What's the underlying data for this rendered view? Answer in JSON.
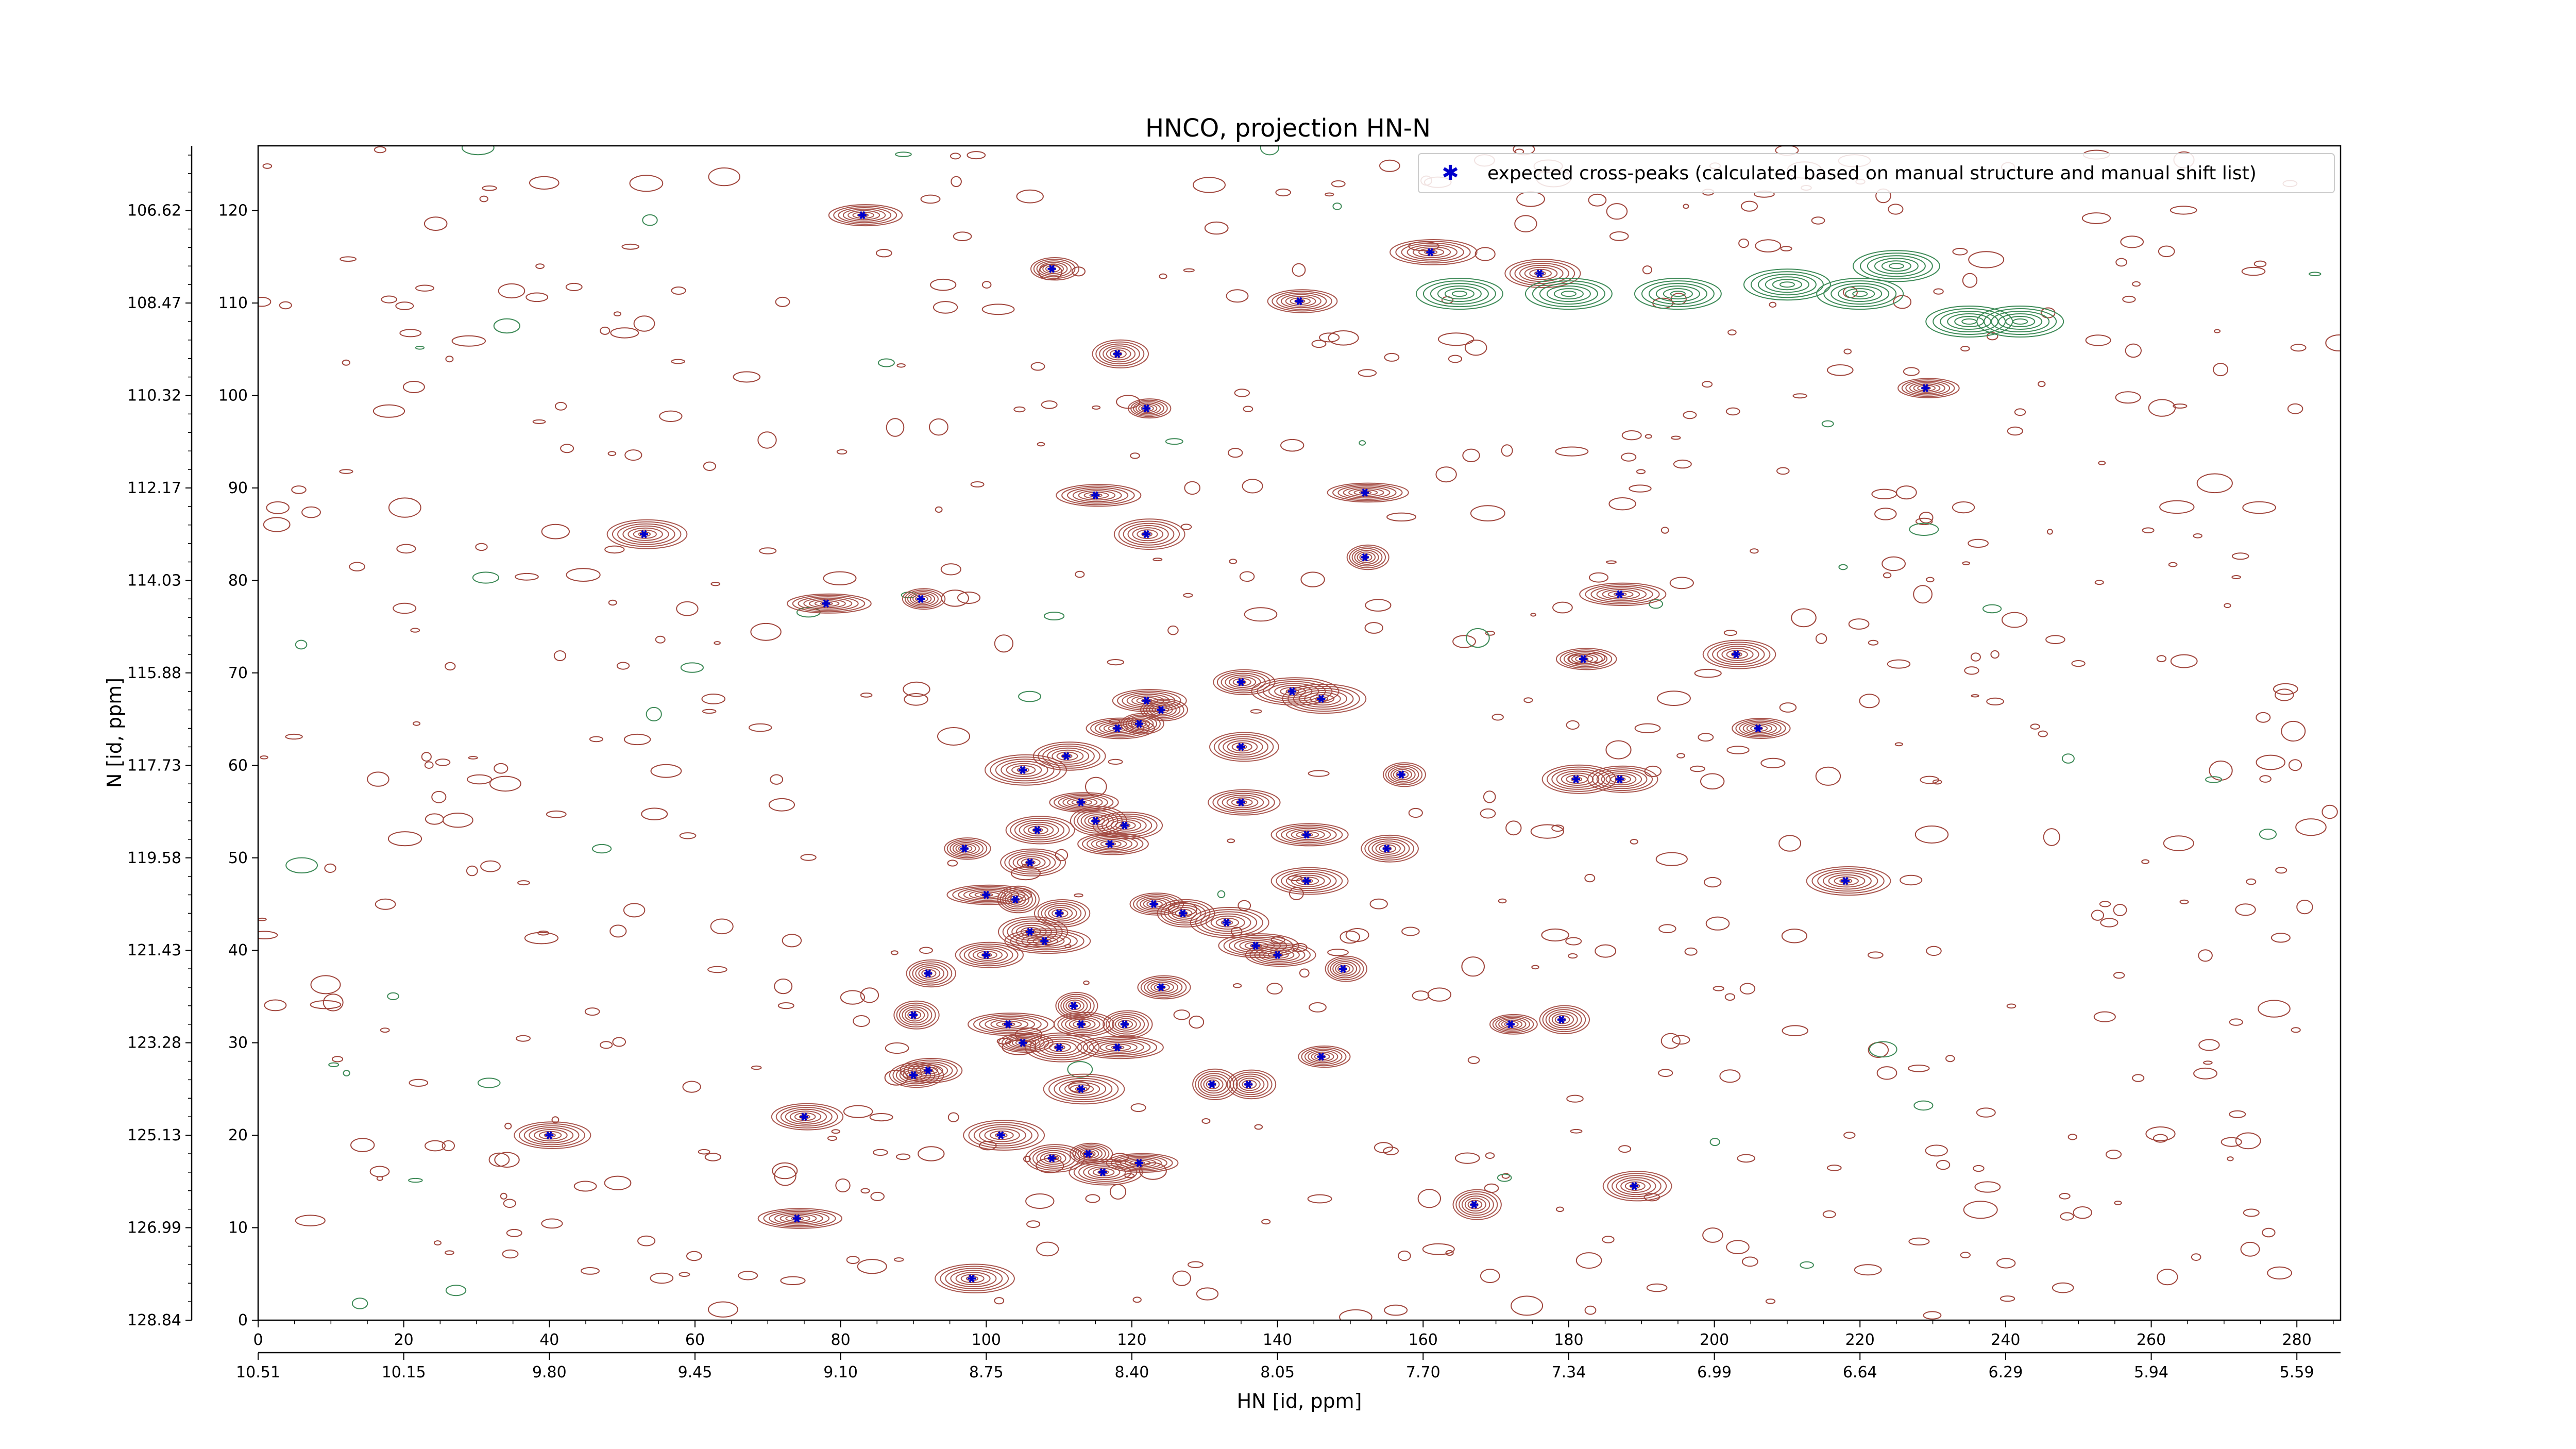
{
  "chart_data": {
    "type": "scatter",
    "title": "HNCO, projection HN-N",
    "xlabel": "HN [id, ppm]",
    "ylabel": "N [id, ppm]",
    "x_index_range": [
      0,
      286
    ],
    "y_index_range": [
      0,
      127
    ],
    "x_index_ticks": [
      0,
      20,
      40,
      60,
      80,
      100,
      120,
      140,
      160,
      180,
      200,
      220,
      240,
      260,
      280
    ],
    "x_ppm_ticks": [
      "10.51",
      "10.15",
      "9.80",
      "9.45",
      "9.10",
      "8.75",
      "8.40",
      "8.05",
      "7.70",
      "7.34",
      "6.99",
      "6.64",
      "6.29",
      "5.94",
      "5.59"
    ],
    "y_index_ticks": [
      0,
      10,
      20,
      30,
      40,
      50,
      60,
      70,
      80,
      90,
      100,
      110,
      120
    ],
    "y_ppm_ticks": [
      "128.84",
      "126.99",
      "125.13",
      "123.28",
      "121.43",
      "119.58",
      "117.73",
      "115.88",
      "114.03",
      "112.17",
      "110.32",
      "108.47",
      "106.62"
    ],
    "grid": false,
    "legend": {
      "position": "top-right",
      "entries": [
        "expected cross-peaks (calculated based on manual structure and manual shift list)"
      ]
    },
    "colors": {
      "positive_contours": "#a0453c",
      "negative_contours": "#3d8a57",
      "markers": "#0000cc"
    },
    "series": [
      {
        "name": "expected cross-peaks (calculated based on manual structure and manual shift list)",
        "points": [
          [
            83,
            119.5
          ],
          [
            109,
            113.7
          ],
          [
            143,
            110.2
          ],
          [
            161,
            115.5
          ],
          [
            176,
            113.2
          ],
          [
            118,
            104.5
          ],
          [
            122,
            98.6
          ],
          [
            229,
            100.8
          ],
          [
            115,
            89.2
          ],
          [
            152,
            89.5
          ],
          [
            122,
            85
          ],
          [
            53,
            85
          ],
          [
            152,
            82.5
          ],
          [
            78,
            77.5
          ],
          [
            91,
            78
          ],
          [
            187,
            78.5
          ],
          [
            203,
            72
          ],
          [
            182,
            71.5
          ],
          [
            135,
            69
          ],
          [
            142,
            68
          ],
          [
            146,
            67.2
          ],
          [
            122,
            67
          ],
          [
            124,
            66
          ],
          [
            121,
            64.5
          ],
          [
            118,
            64
          ],
          [
            206,
            64
          ],
          [
            135,
            62
          ],
          [
            105,
            59.5
          ],
          [
            111,
            61
          ],
          [
            157,
            59
          ],
          [
            181,
            58.5
          ],
          [
            187,
            58.5
          ],
          [
            113,
            56
          ],
          [
            135,
            56
          ],
          [
            107,
            53
          ],
          [
            115,
            54
          ],
          [
            119,
            53.5
          ],
          [
            144,
            52.5
          ],
          [
            117,
            51.5
          ],
          [
            155,
            51
          ],
          [
            97,
            51
          ],
          [
            106,
            49.5
          ],
          [
            144,
            47.5
          ],
          [
            218,
            47.5
          ],
          [
            100,
            46
          ],
          [
            104,
            45.5
          ],
          [
            123,
            45
          ],
          [
            110,
            44
          ],
          [
            127,
            44
          ],
          [
            133,
            43
          ],
          [
            106,
            42
          ],
          [
            108,
            41
          ],
          [
            137,
            40.5
          ],
          [
            100,
            39.5
          ],
          [
            140,
            39.5
          ],
          [
            149,
            38
          ],
          [
            92,
            37.5
          ],
          [
            124,
            36
          ],
          [
            112,
            34
          ],
          [
            90,
            33
          ],
          [
            113,
            32
          ],
          [
            103,
            32
          ],
          [
            119,
            32
          ],
          [
            172,
            32
          ],
          [
            179,
            32.5
          ],
          [
            105,
            30
          ],
          [
            110,
            29.5
          ],
          [
            118,
            29.5
          ],
          [
            146,
            28.5
          ],
          [
            92,
            27
          ],
          [
            90,
            26.5
          ],
          [
            131,
            25.5
          ],
          [
            136,
            25.5
          ],
          [
            113,
            25
          ],
          [
            75,
            22
          ],
          [
            40,
            20
          ],
          [
            102,
            20
          ],
          [
            114,
            18
          ],
          [
            109,
            17.5
          ],
          [
            121,
            17
          ],
          [
            116,
            16
          ],
          [
            189,
            14.5
          ],
          [
            167,
            12.5
          ],
          [
            74,
            11
          ],
          [
            98,
            4.5
          ]
        ]
      }
    ]
  }
}
